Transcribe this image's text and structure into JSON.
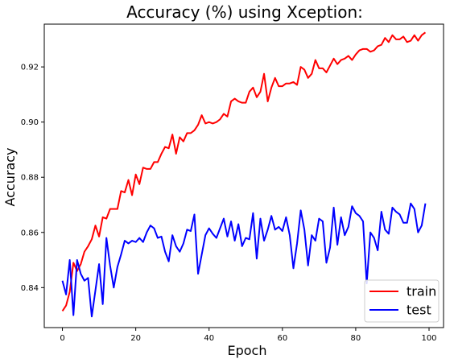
{
  "chart_data": {
    "type": "line",
    "title": "Accuracy (%) using Xception:",
    "xlabel": "Epoch",
    "ylabel": "Accuracy",
    "xlim": [
      -4.95,
      103.95
    ],
    "ylim": [
      0.8255,
      0.9355
    ],
    "xticks": [
      0,
      20,
      40,
      60,
      80,
      100
    ],
    "yticks": [
      0.84,
      0.86,
      0.88,
      0.9,
      0.92
    ],
    "ytick_labels": [
      "0.84",
      "0.86",
      "0.88",
      "0.90",
      "0.92"
    ],
    "grid": false,
    "legend_position": "lower-right",
    "series": [
      {
        "name": "train",
        "color": "#ff0000",
        "values": [
          0.8315,
          0.8335,
          0.8385,
          0.849,
          0.846,
          0.8485,
          0.853,
          0.855,
          0.8575,
          0.8625,
          0.8585,
          0.8655,
          0.865,
          0.8685,
          0.8685,
          0.8685,
          0.875,
          0.8745,
          0.879,
          0.8735,
          0.881,
          0.8775,
          0.8835,
          0.883,
          0.883,
          0.8855,
          0.8855,
          0.8885,
          0.891,
          0.8905,
          0.8955,
          0.8885,
          0.8945,
          0.893,
          0.896,
          0.896,
          0.897,
          0.899,
          0.9025,
          0.8995,
          0.9,
          0.8995,
          0.9,
          0.901,
          0.903,
          0.902,
          0.9075,
          0.9085,
          0.9075,
          0.907,
          0.907,
          0.911,
          0.9125,
          0.909,
          0.911,
          0.9175,
          0.9075,
          0.9125,
          0.916,
          0.913,
          0.913,
          0.914,
          0.914,
          0.9145,
          0.9135,
          0.92,
          0.919,
          0.916,
          0.9175,
          0.9225,
          0.9195,
          0.9195,
          0.918,
          0.9205,
          0.923,
          0.921,
          0.9225,
          0.923,
          0.924,
          0.9225,
          0.9245,
          0.926,
          0.9265,
          0.9265,
          0.9255,
          0.926,
          0.9275,
          0.928,
          0.9305,
          0.929,
          0.9315,
          0.93,
          0.93,
          0.931,
          0.929,
          0.9295,
          0.9315,
          0.9295,
          0.9315,
          0.9325
        ]
      },
      {
        "name": "test",
        "color": "#0000ff",
        "values": [
          0.8425,
          0.8375,
          0.85,
          0.83,
          0.85,
          0.845,
          0.8425,
          0.8435,
          0.8295,
          0.839,
          0.8485,
          0.834,
          0.858,
          0.848,
          0.84,
          0.8475,
          0.852,
          0.857,
          0.856,
          0.857,
          0.8565,
          0.858,
          0.8565,
          0.86,
          0.8625,
          0.8615,
          0.858,
          0.8585,
          0.853,
          0.8495,
          0.859,
          0.855,
          0.853,
          0.856,
          0.861,
          0.8605,
          0.8665,
          0.845,
          0.852,
          0.859,
          0.8615,
          0.8595,
          0.858,
          0.8615,
          0.865,
          0.8585,
          0.864,
          0.857,
          0.863,
          0.855,
          0.858,
          0.8575,
          0.867,
          0.8505,
          0.865,
          0.857,
          0.861,
          0.866,
          0.861,
          0.862,
          0.8605,
          0.8655,
          0.859,
          0.847,
          0.856,
          0.868,
          0.861,
          0.848,
          0.859,
          0.857,
          0.865,
          0.864,
          0.849,
          0.8545,
          0.869,
          0.8555,
          0.8655,
          0.859,
          0.862,
          0.8695,
          0.867,
          0.866,
          0.864,
          0.8415,
          0.86,
          0.858,
          0.8535,
          0.8675,
          0.861,
          0.8595,
          0.869,
          0.8675,
          0.8665,
          0.8635,
          0.8635,
          0.8705,
          0.8685,
          0.86,
          0.8625,
          0.8705
        ]
      }
    ]
  }
}
